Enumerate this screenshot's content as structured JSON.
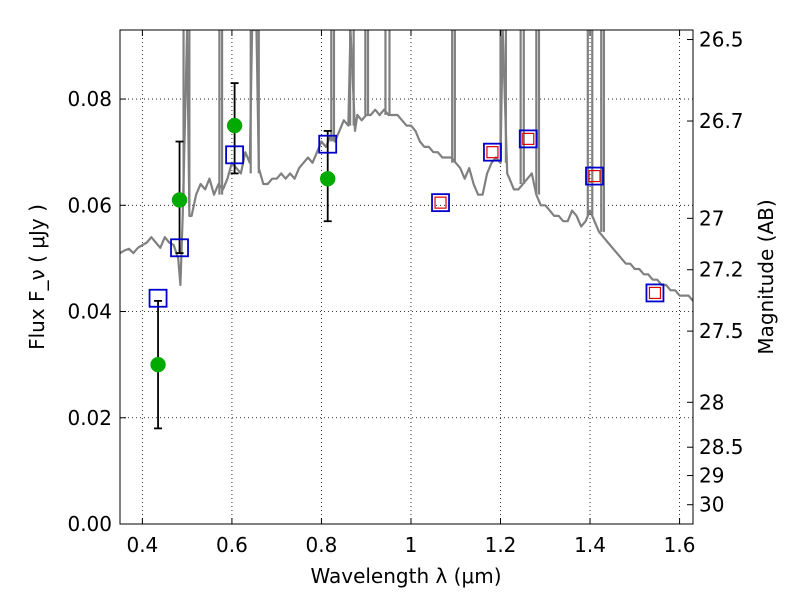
{
  "chart_data": {
    "type": "scatter",
    "xlabel": "Wavelength  λ (μm)",
    "ylabel_left": "Flux  F_ν  ( μJy )",
    "ylabel_right": "Magnitude (AB)",
    "xlim": [
      0.35,
      1.63
    ],
    "ylim": [
      0.0,
      0.093
    ],
    "x_ticks": [
      {
        "value": 0.4,
        "label": "0.4"
      },
      {
        "value": 0.6,
        "label": "0.6"
      },
      {
        "value": 0.8,
        "label": "0.8"
      },
      {
        "value": 1.0,
        "label": "1"
      },
      {
        "value": 1.2,
        "label": "1.2"
      },
      {
        "value": 1.4,
        "label": "1.4"
      },
      {
        "value": 1.6,
        "label": "1.6"
      }
    ],
    "y_ticks": [
      {
        "value": 0.0,
        "label": "0.00"
      },
      {
        "value": 0.02,
        "label": "0.02"
      },
      {
        "value": 0.04,
        "label": "0.04"
      },
      {
        "value": 0.06,
        "label": "0.06"
      },
      {
        "value": 0.08,
        "label": "0.08"
      }
    ],
    "right_ticks": [
      {
        "mag": 26.5,
        "label": "26.5"
      },
      {
        "mag": 26.7,
        "label": "26.7"
      },
      {
        "mag": 27.0,
        "label": "27"
      },
      {
        "mag": 27.2,
        "label": "27.2"
      },
      {
        "mag": 27.5,
        "label": "27.5"
      },
      {
        "mag": 28.0,
        "label": "28"
      },
      {
        "mag": 28.5,
        "label": "28.5"
      },
      {
        "mag": 29.0,
        "label": "29"
      },
      {
        "mag": 30.0,
        "label": "30"
      }
    ],
    "colors": {
      "model": "#808080",
      "observed": "#00aa00",
      "model_blue": "#0000cc",
      "model_red": "#dd0000",
      "errorbar": "#000000"
    },
    "model_spectrum": {
      "name": "SED model",
      "points": [
        [
          0.35,
          0.051
        ],
        [
          0.36,
          0.0515
        ],
        [
          0.37,
          0.0518
        ],
        [
          0.38,
          0.051
        ],
        [
          0.39,
          0.052
        ],
        [
          0.4,
          0.0525
        ],
        [
          0.41,
          0.053
        ],
        [
          0.42,
          0.054
        ],
        [
          0.43,
          0.053
        ],
        [
          0.44,
          0.052
        ],
        [
          0.45,
          0.054
        ],
        [
          0.46,
          0.053
        ],
        [
          0.47,
          0.0525
        ],
        [
          0.48,
          0.05
        ],
        [
          0.485,
          0.045
        ],
        [
          0.49,
          0.058
        ],
        [
          0.495,
          0.075
        ],
        [
          0.5,
          0.093
        ],
        [
          0.505,
          0.058
        ],
        [
          0.51,
          0.058
        ],
        [
          0.52,
          0.062
        ],
        [
          0.53,
          0.064
        ],
        [
          0.54,
          0.063
        ],
        [
          0.55,
          0.065
        ],
        [
          0.56,
          0.062
        ],
        [
          0.57,
          0.064
        ],
        [
          0.58,
          0.063
        ],
        [
          0.59,
          0.065
        ],
        [
          0.6,
          0.068
        ],
        [
          0.61,
          0.067
        ],
        [
          0.62,
          0.066
        ],
        [
          0.63,
          0.07
        ],
        [
          0.64,
          0.068
        ],
        [
          0.645,
          0.093
        ],
        [
          0.655,
          0.093
        ],
        [
          0.66,
          0.067
        ],
        [
          0.67,
          0.064
        ],
        [
          0.68,
          0.064
        ],
        [
          0.69,
          0.065
        ],
        [
          0.7,
          0.065
        ],
        [
          0.71,
          0.066
        ],
        [
          0.72,
          0.065
        ],
        [
          0.73,
          0.066
        ],
        [
          0.74,
          0.065
        ],
        [
          0.75,
          0.067
        ],
        [
          0.76,
          0.068
        ],
        [
          0.77,
          0.069
        ],
        [
          0.78,
          0.068
        ],
        [
          0.79,
          0.07
        ],
        [
          0.8,
          0.072
        ],
        [
          0.81,
          0.071
        ],
        [
          0.82,
          0.073
        ],
        [
          0.83,
          0.072
        ],
        [
          0.84,
          0.074
        ],
        [
          0.85,
          0.076
        ],
        [
          0.86,
          0.075
        ],
        [
          0.865,
          0.093
        ],
        [
          0.875,
          0.074
        ],
        [
          0.88,
          0.077
        ],
        [
          0.89,
          0.076
        ],
        [
          0.9,
          0.077
        ],
        [
          0.91,
          0.077
        ],
        [
          0.92,
          0.078
        ],
        [
          0.93,
          0.077
        ],
        [
          0.94,
          0.078
        ],
        [
          0.95,
          0.077
        ],
        [
          0.96,
          0.077
        ],
        [
          0.97,
          0.077
        ],
        [
          0.98,
          0.076
        ],
        [
          0.99,
          0.075
        ],
        [
          1.0,
          0.075
        ],
        [
          1.01,
          0.074
        ],
        [
          1.02,
          0.072
        ],
        [
          1.03,
          0.071
        ],
        [
          1.04,
          0.071
        ],
        [
          1.05,
          0.07
        ],
        [
          1.06,
          0.07
        ],
        [
          1.07,
          0.069
        ],
        [
          1.08,
          0.069
        ],
        [
          1.09,
          0.069
        ],
        [
          1.1,
          0.068
        ],
        [
          1.11,
          0.067
        ],
        [
          1.12,
          0.065
        ],
        [
          1.13,
          0.067
        ],
        [
          1.14,
          0.064
        ],
        [
          1.15,
          0.062
        ],
        [
          1.16,
          0.062
        ],
        [
          1.17,
          0.066
        ],
        [
          1.18,
          0.068
        ],
        [
          1.19,
          0.069
        ],
        [
          1.2,
          0.068
        ],
        [
          1.205,
          0.093
        ],
        [
          1.215,
          0.066
        ],
        [
          1.22,
          0.065
        ],
        [
          1.23,
          0.063
        ],
        [
          1.24,
          0.063
        ],
        [
          1.25,
          0.064
        ],
        [
          1.26,
          0.065
        ],
        [
          1.27,
          0.066
        ],
        [
          1.28,
          0.062
        ],
        [
          1.29,
          0.06
        ],
        [
          1.3,
          0.06
        ],
        [
          1.31,
          0.059
        ],
        [
          1.32,
          0.058
        ],
        [
          1.33,
          0.058
        ],
        [
          1.34,
          0.057
        ],
        [
          1.35,
          0.057
        ],
        [
          1.36,
          0.059
        ],
        [
          1.37,
          0.058
        ],
        [
          1.38,
          0.056
        ],
        [
          1.39,
          0.057
        ],
        [
          1.4,
          0.059
        ],
        [
          1.41,
          0.057
        ],
        [
          1.42,
          0.055
        ],
        [
          1.43,
          0.054
        ],
        [
          1.44,
          0.053
        ],
        [
          1.45,
          0.052
        ],
        [
          1.46,
          0.051
        ],
        [
          1.47,
          0.05
        ],
        [
          1.48,
          0.049
        ],
        [
          1.49,
          0.049
        ],
        [
          1.5,
          0.048
        ],
        [
          1.51,
          0.048
        ],
        [
          1.52,
          0.047
        ],
        [
          1.53,
          0.047
        ],
        [
          1.54,
          0.046
        ],
        [
          1.55,
          0.046
        ],
        [
          1.56,
          0.045
        ],
        [
          1.57,
          0.045
        ],
        [
          1.58,
          0.044
        ],
        [
          1.59,
          0.044
        ],
        [
          1.6,
          0.043
        ],
        [
          1.61,
          0.043
        ],
        [
          1.62,
          0.043
        ],
        [
          1.63,
          0.042
        ]
      ]
    },
    "emission_spikes": [
      {
        "x0": 0.492,
        "x1": 0.505,
        "base": 0.06
      },
      {
        "x0": 0.572,
        "x1": 0.578,
        "base": 0.062
      },
      {
        "x0": 0.642,
        "x1": 0.66,
        "base": 0.066
      },
      {
        "x0": 0.822,
        "x1": 0.828,
        "base": 0.072
      },
      {
        "x0": 0.864,
        "x1": 0.872,
        "base": 0.075
      },
      {
        "x0": 0.898,
        "x1": 0.904,
        "base": 0.077
      },
      {
        "x0": 0.943,
        "x1": 0.952,
        "base": 0.077
      },
      {
        "x0": 1.092,
        "x1": 1.098,
        "base": 0.068
      },
      {
        "x0": 1.2,
        "x1": 1.212,
        "base": 0.068
      },
      {
        "x0": 1.245,
        "x1": 1.252,
        "base": 0.064
      },
      {
        "x0": 1.28,
        "x1": 1.286,
        "base": 0.062
      },
      {
        "x0": 1.395,
        "x1": 1.405,
        "base": 0.058
      },
      {
        "x0": 1.425,
        "x1": 1.431,
        "base": 0.055
      }
    ],
    "observed_points": [
      {
        "x": 0.435,
        "y": 0.03,
        "ylow": 0.018,
        "yhigh": 0.042
      },
      {
        "x": 0.483,
        "y": 0.061,
        "ylow": 0.051,
        "yhigh": 0.072
      },
      {
        "x": 0.606,
        "y": 0.075,
        "ylow": 0.066,
        "yhigh": 0.083
      },
      {
        "x": 0.814,
        "y": 0.065,
        "ylow": 0.057,
        "yhigh": 0.074
      }
    ],
    "model_band_points": [
      {
        "x": 0.435,
        "y": 0.0425,
        "inner_red": false
      },
      {
        "x": 0.483,
        "y": 0.052,
        "inner_red": false
      },
      {
        "x": 0.606,
        "y": 0.0695,
        "inner_red": false
      },
      {
        "x": 0.814,
        "y": 0.0715,
        "inner_red": false
      },
      {
        "x": 1.066,
        "y": 0.0605,
        "inner_red": true
      },
      {
        "x": 1.182,
        "y": 0.07,
        "inner_red": true
      },
      {
        "x": 1.262,
        "y": 0.0725,
        "inner_red": true
      },
      {
        "x": 1.41,
        "y": 0.0655,
        "inner_red": true
      },
      {
        "x": 1.545,
        "y": 0.0435,
        "inner_red": true
      }
    ]
  }
}
